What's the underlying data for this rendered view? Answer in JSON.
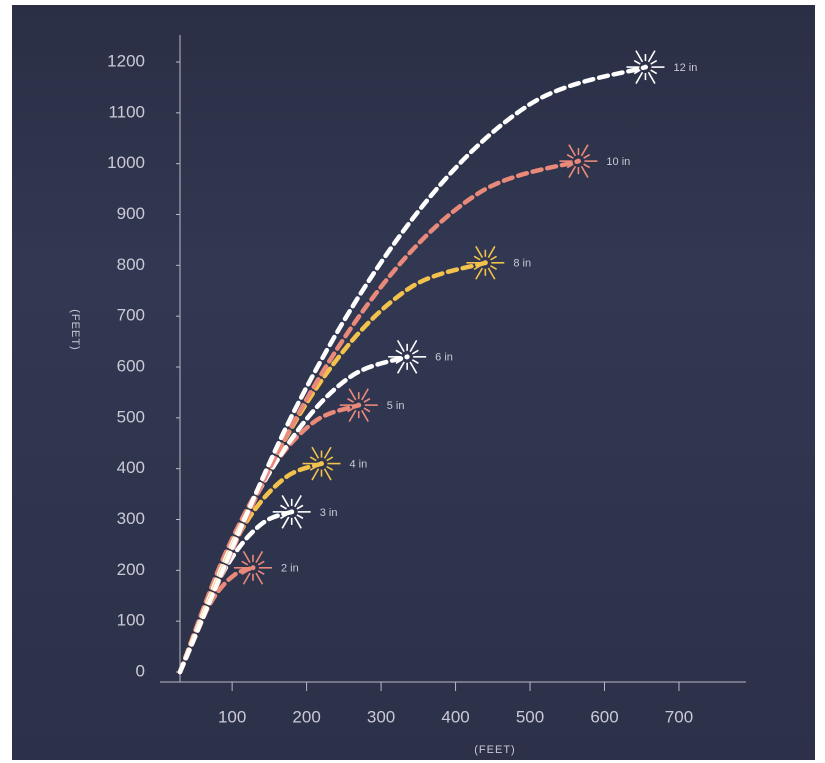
{
  "chart_data": {
    "type": "line",
    "x_label": "(FEET)",
    "y_label": "(FEET)",
    "xlim": [
      30,
      790
    ],
    "ylim": [
      0,
      1200
    ],
    "xticks": [
      100,
      200,
      300,
      400,
      500,
      600,
      700
    ],
    "yticks": [
      0,
      100,
      200,
      300,
      400,
      500,
      600,
      700,
      800,
      900,
      1000,
      1100,
      1200
    ],
    "series": [
      {
        "name": "2 in",
        "color": "#e8897a",
        "x": [
          30,
          55,
          79,
          104,
          128
        ],
        "values": [
          0,
          90,
          154,
          192,
          205
        ]
      },
      {
        "name": "3 in",
        "color": "#ffffff",
        "x": [
          30,
          68,
          105,
          143,
          180
        ],
        "values": [
          0,
          138,
          236,
          295,
          315
        ]
      },
      {
        "name": "4 in",
        "color": "#f2c24c",
        "x": [
          30,
          78,
          125,
          173,
          220
        ],
        "values": [
          0,
          179,
          308,
          384,
          410
        ]
      },
      {
        "name": "5 in",
        "color": "#e8897a",
        "x": [
          30,
          90,
          150,
          210,
          270
        ],
        "values": [
          0,
          230,
          394,
          492,
          525
        ]
      },
      {
        "name": "6 in",
        "color": "#ffffff",
        "x": [
          30,
          106,
          183,
          259,
          335
        ],
        "values": [
          0,
          271,
          465,
          581,
          620
        ]
      },
      {
        "name": "8 in",
        "color": "#f2c24c",
        "x": [
          30,
          133,
          235,
          338,
          440
        ],
        "values": [
          0,
          352,
          604,
          755,
          805
        ]
      },
      {
        "name": "10 in",
        "color": "#e8897a",
        "x": [
          30,
          164,
          298,
          431,
          565
        ],
        "values": [
          0,
          440,
          754,
          942,
          1005
        ]
      },
      {
        "name": "12 in",
        "color": "#ffffff",
        "x": [
          30,
          186,
          343,
          499,
          655
        ],
        "values": [
          0,
          521,
          893,
          1116,
          1190
        ]
      }
    ]
  }
}
